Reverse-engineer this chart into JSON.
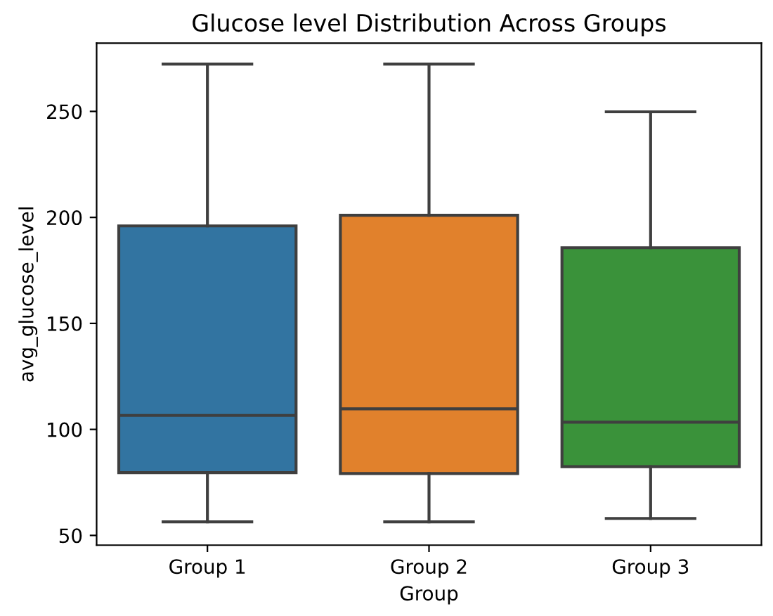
{
  "chart_data": {
    "type": "box",
    "title": "Glucose level Distribution Across Groups",
    "xlabel": "Group",
    "ylabel": "avg_glucose_level",
    "categories": [
      "Group 1",
      "Group 2",
      "Group 3"
    ],
    "colors": [
      "#3274a1",
      "#e1812c",
      "#3a923a"
    ],
    "boxes": [
      {
        "low": 56.4,
        "q1": 79.6,
        "median": 106.6,
        "q3": 196,
        "high": 272.3
      },
      {
        "low": 56.4,
        "q1": 79.2,
        "median": 109.7,
        "q3": 201,
        "high": 272.3
      },
      {
        "low": 58,
        "q1": 82.4,
        "median": 103.4,
        "q3": 185.7,
        "high": 249.8
      }
    ],
    "ylim": [
      45.4,
      282.2
    ],
    "yticks": [
      50,
      100,
      150,
      200,
      250
    ],
    "grid": false
  }
}
